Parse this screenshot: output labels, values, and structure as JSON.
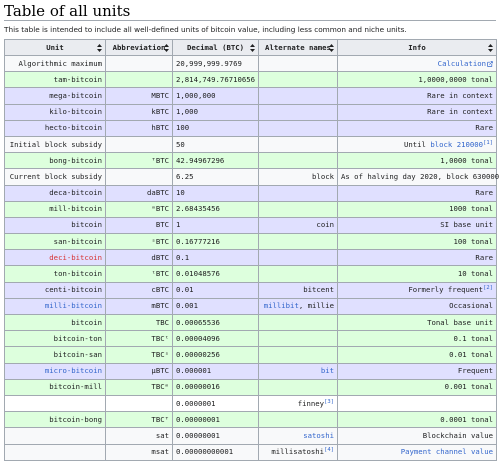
{
  "page": {
    "title": "Table of all units",
    "intro": "This table is intended to include all well-defined units of bitcoin value, including less common and niche units."
  },
  "table": {
    "headers": [
      "Unit",
      "Abbreviation",
      "Decimal (BTC)",
      "Alternate names",
      "Info"
    ],
    "rows": [
      {
        "style": "grey",
        "unit": "Algorithmic maximum",
        "abbr": "",
        "decimal": "20,999,999.9769",
        "alt": "",
        "info": "Calculation",
        "info_link": true,
        "info_ext": true
      },
      {
        "style": "green",
        "unit": "tam-bitcoin",
        "abbr": "",
        "decimal": "2,814,749.76710656",
        "alt": "",
        "info": "1,0000,0000 tonal"
      },
      {
        "style": "blue",
        "unit": "mega-bitcoin",
        "abbr": "MBTC",
        "decimal": "1,000,000",
        "alt": "",
        "info": "Rare in context"
      },
      {
        "style": "blue",
        "unit": "kilo-bitcoin",
        "abbr": "kBTC",
        "decimal": "1,000",
        "alt": "",
        "info": "Rare in context"
      },
      {
        "style": "blue",
        "unit": "hecto-bitcoin",
        "abbr": "hBTC",
        "decimal": "100",
        "alt": "",
        "info": "Rare"
      },
      {
        "style": "grey",
        "unit": "Initial block subsidy",
        "abbr": "",
        "decimal": "50",
        "alt": "",
        "info": "Until ",
        "info_linktext": "block 210000",
        "info_sup": "[1]"
      },
      {
        "style": "green",
        "unit": "bong-bitcoin",
        "abbr": "ᵀBTC",
        "decimal": "42.94967296",
        "alt": "",
        "info": "1,0000 tonal"
      },
      {
        "style": "grey",
        "unit": "Current block subsidy",
        "abbr": "",
        "decimal": "6.25",
        "alt": "block",
        "info": "As of halving day 2020, block 630000"
      },
      {
        "style": "blue",
        "unit": "deca-bitcoin",
        "abbr": "daBTC",
        "decimal": "10",
        "alt": "",
        "info": "Rare"
      },
      {
        "style": "green",
        "unit": "mill-bitcoin",
        "abbr": "ᵐBTC",
        "decimal": "2.68435456",
        "alt": "",
        "info": "1000 tonal"
      },
      {
        "style": "blue",
        "unit": "bitcoin",
        "abbr": "BTC",
        "decimal": "1",
        "alt": "coin",
        "info": "SI base unit"
      },
      {
        "style": "green",
        "unit": "san-bitcoin",
        "abbr": "ˢBTC",
        "decimal": "0.16777216",
        "alt": "",
        "info": "100 tonal"
      },
      {
        "style": "blue",
        "unit": "deci-bitcoin",
        "unit_color": "red",
        "abbr": "dBTC",
        "decimal": "0.1",
        "alt": "",
        "info": "Rare"
      },
      {
        "style": "green",
        "unit": "ton-bitcoin",
        "abbr": "ᵗBTC",
        "decimal": "0.01048576",
        "alt": "",
        "info": "10 tonal"
      },
      {
        "style": "blue",
        "unit": "centi-bitcoin",
        "abbr": "cBTC",
        "decimal": "0.01",
        "alt": "bitcent",
        "info": "Formerly frequent",
        "info_sup": "[2]"
      },
      {
        "style": "blue",
        "unit": "milli-bitcoin",
        "unit_color": "blue",
        "abbr": "mBTC",
        "decimal": "0.001",
        "alt": "millibit, millie",
        "alt_link": "millibit",
        "alt_rest": ", millie",
        "info": "Occasional"
      },
      {
        "style": "green",
        "unit": "bitcoin",
        "abbr": "TBC",
        "decimal": "0.00065536",
        "alt": "",
        "info": "Tonal base unit"
      },
      {
        "style": "green",
        "unit": "bitcoin-ton",
        "abbr": "TBCᵗ",
        "decimal": "0.00004096",
        "alt": "",
        "info": "0.1 tonal"
      },
      {
        "style": "green",
        "unit": "bitcoin-san",
        "abbr": "TBCˢ",
        "decimal": "0.00000256",
        "alt": "",
        "info": "0.01 tonal"
      },
      {
        "style": "blue",
        "unit": "micro-bitcoin",
        "unit_color": "blue",
        "abbr": "µBTC",
        "decimal": "0.000001",
        "alt": "bit",
        "alt_link": "bit",
        "info": "Frequent"
      },
      {
        "style": "green",
        "unit": "bitcoin-mill",
        "abbr": "TBCᵐ",
        "decimal": "0.00000016",
        "alt": "",
        "info": "0.001 tonal"
      },
      {
        "style": "white",
        "unit": "",
        "abbr": "",
        "decimal": "0.0000001",
        "alt": "finney",
        "alt_sup": "[3]",
        "info": ""
      },
      {
        "style": "green",
        "unit": "bitcoin-bong",
        "abbr": "TBCᵀ",
        "decimal": "0.00000001",
        "alt": "",
        "info": "0.0001 tonal"
      },
      {
        "style": "grey",
        "unit": "",
        "abbr": "sat",
        "decimal": "0.00000001",
        "alt": "satoshi",
        "alt_link": "satoshi",
        "info": "Blockchain value"
      },
      {
        "style": "grey",
        "unit": "",
        "abbr": "msat",
        "decimal": "0.00000000001",
        "alt": "millisatoshi",
        "alt_sup": "[4]",
        "info": "Payment channel value",
        "info_link": true
      }
    ]
  }
}
